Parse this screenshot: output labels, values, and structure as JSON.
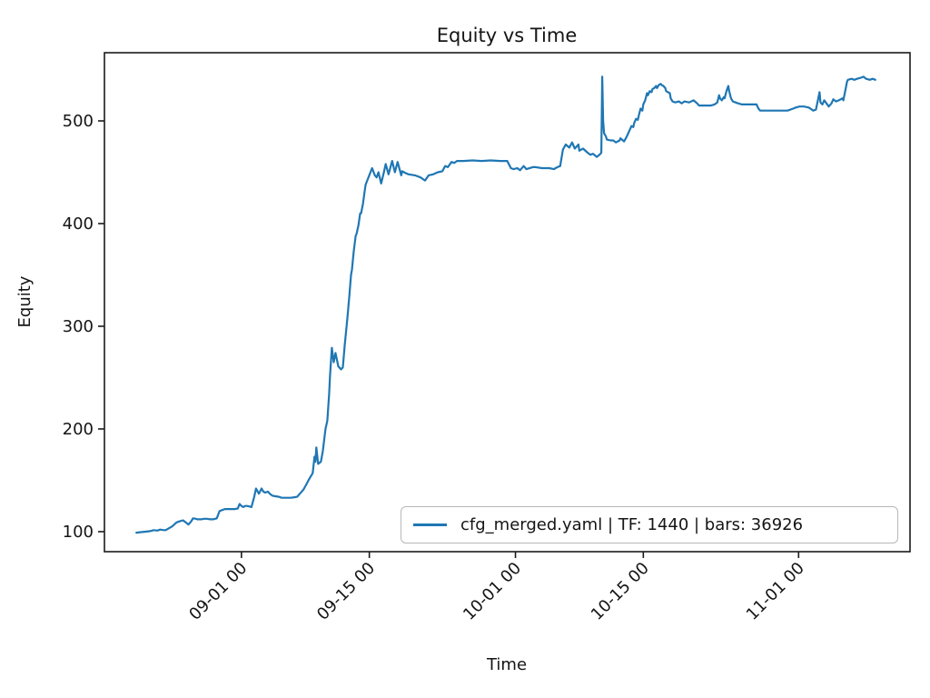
{
  "chart_data": {
    "type": "line",
    "title": "Equity vs Time",
    "xlabel": "Time",
    "ylabel": "Equity",
    "grid": false,
    "legend_position": "lower right",
    "x_unit": "days relative to 09-01 00",
    "xlim": [
      -15.0,
      73.2
    ],
    "ylim": [
      80.5,
      566.4
    ],
    "x_ticks": [
      {
        "t": 0,
        "label": "09-01 00"
      },
      {
        "t": 14,
        "label": "09-15 00"
      },
      {
        "t": 30,
        "label": "10-01 00"
      },
      {
        "t": 44,
        "label": "10-15 00"
      },
      {
        "t": 61,
        "label": "11-01 00"
      }
    ],
    "y_ticks": [
      100,
      200,
      300,
      400,
      500
    ],
    "series": [
      {
        "name": "cfg_merged.yaml | TF: 1440 | bars: 36926",
        "color": "#1f77b4",
        "points": [
          [
            -11.5,
            99
          ],
          [
            -11,
            99.5
          ],
          [
            -10.5,
            100
          ],
          [
            -10,
            100.5
          ],
          [
            -9.6,
            101.5
          ],
          [
            -9.2,
            101
          ],
          [
            -8.9,
            102
          ],
          [
            -8.5,
            101.5
          ],
          [
            -8.3,
            101.5
          ],
          [
            -8,
            103
          ],
          [
            -7.6,
            105
          ],
          [
            -7.1,
            109
          ],
          [
            -6.8,
            110
          ],
          [
            -6.4,
            111
          ],
          [
            -6.1,
            109
          ],
          [
            -5.8,
            107
          ],
          [
            -5.5,
            110
          ],
          [
            -5.3,
            113
          ],
          [
            -5,
            112.5
          ],
          [
            -4.8,
            112
          ],
          [
            -4.4,
            112
          ],
          [
            -4.1,
            112.5
          ],
          [
            -3.8,
            112.5
          ],
          [
            -3.4,
            112
          ],
          [
            -3.1,
            112
          ],
          [
            -2.7,
            113
          ],
          [
            -2.4,
            120
          ],
          [
            -2.1,
            121
          ],
          [
            -1.8,
            122
          ],
          [
            -1.4,
            122
          ],
          [
            -1.1,
            122
          ],
          [
            -0.7,
            122
          ],
          [
            -0.4,
            122.5
          ],
          [
            -0.2,
            127
          ],
          [
            0,
            125
          ],
          [
            0.2,
            124
          ],
          [
            0.4,
            125
          ],
          [
            0.6,
            125
          ],
          [
            0.9,
            124.5
          ],
          [
            1.1,
            124
          ],
          [
            1.4,
            134
          ],
          [
            1.6,
            142
          ],
          [
            1.9,
            137
          ],
          [
            2.2,
            142
          ],
          [
            2.4,
            139
          ],
          [
            2.6,
            138
          ],
          [
            2.9,
            139
          ],
          [
            3.1,
            137
          ],
          [
            3.4,
            135
          ],
          [
            3.7,
            134.5
          ],
          [
            4.1,
            134
          ],
          [
            4.4,
            133
          ],
          [
            4.9,
            133
          ],
          [
            5.4,
            133
          ],
          [
            5.8,
            133.5
          ],
          [
            6.1,
            134
          ],
          [
            6.4,
            137
          ],
          [
            6.8,
            141
          ],
          [
            7.1,
            146
          ],
          [
            7.4,
            151
          ],
          [
            7.8,
            157
          ],
          [
            8,
            173
          ],
          [
            8.1,
            168
          ],
          [
            8.2,
            182
          ],
          [
            8.4,
            166
          ],
          [
            8.7,
            168
          ],
          [
            8.9,
            178
          ],
          [
            9.2,
            200
          ],
          [
            9.4,
            208
          ],
          [
            9.6,
            234
          ],
          [
            9.7,
            252
          ],
          [
            9.9,
            279
          ],
          [
            10.1,
            265
          ],
          [
            10.3,
            274
          ],
          [
            10.6,
            261
          ],
          [
            10.9,
            258
          ],
          [
            11.1,
            260
          ],
          [
            11.3,
            281
          ],
          [
            11.6,
            308
          ],
          [
            11.8,
            328
          ],
          [
            12,
            350
          ],
          [
            12.1,
            355
          ],
          [
            12.3,
            373
          ],
          [
            12.5,
            388
          ],
          [
            12.6,
            390
          ],
          [
            12.8,
            398
          ],
          [
            13,
            410
          ],
          [
            13.1,
            410
          ],
          [
            13.3,
            419
          ],
          [
            13.5,
            432
          ],
          [
            13.6,
            438
          ],
          [
            14,
            447
          ],
          [
            14.3,
            454
          ],
          [
            14.6,
            447
          ],
          [
            14.8,
            445
          ],
          [
            15,
            450
          ],
          [
            15.3,
            439
          ],
          [
            15.6,
            450
          ],
          [
            15.8,
            458
          ],
          [
            16.1,
            448
          ],
          [
            16.5,
            461
          ],
          [
            16.8,
            450
          ],
          [
            17.1,
            460
          ],
          [
            17.5,
            447
          ],
          [
            17.6,
            451
          ],
          [
            18,
            449
          ],
          [
            18.3,
            448
          ],
          [
            19,
            447
          ],
          [
            19.6,
            445
          ],
          [
            20.1,
            442
          ],
          [
            20.5,
            447
          ],
          [
            21,
            448
          ],
          [
            21.5,
            450
          ],
          [
            22,
            451
          ],
          [
            22.3,
            456
          ],
          [
            22.6,
            455
          ],
          [
            23,
            460
          ],
          [
            23.3,
            459
          ],
          [
            23.6,
            461
          ],
          [
            24.3,
            461
          ],
          [
            25.3,
            461.5
          ],
          [
            26.3,
            461
          ],
          [
            27.3,
            461.5
          ],
          [
            28.3,
            461
          ],
          [
            29.1,
            461
          ],
          [
            29.5,
            454
          ],
          [
            29.8,
            453
          ],
          [
            30.2,
            454
          ],
          [
            30.5,
            452
          ],
          [
            30.9,
            456
          ],
          [
            31.2,
            453
          ],
          [
            31.9,
            455
          ],
          [
            32.2,
            455
          ],
          [
            32.9,
            454
          ],
          [
            33.7,
            454
          ],
          [
            34.2,
            453
          ],
          [
            34.6,
            455
          ],
          [
            34.9,
            456
          ],
          [
            35.2,
            472
          ],
          [
            35.5,
            477
          ],
          [
            35.9,
            474
          ],
          [
            36.2,
            479
          ],
          [
            36.5,
            473
          ],
          [
            36.9,
            477
          ],
          [
            37,
            471
          ],
          [
            37.4,
            473
          ],
          [
            37.9,
            469
          ],
          [
            38.2,
            467
          ],
          [
            38.5,
            468
          ],
          [
            38.9,
            465
          ],
          [
            39.2,
            467
          ],
          [
            39.4,
            469
          ],
          [
            39.5,
            543
          ],
          [
            39.6,
            500
          ],
          [
            39.7,
            488
          ],
          [
            39.9,
            485
          ],
          [
            40,
            482
          ],
          [
            40.4,
            481
          ],
          [
            40.7,
            481
          ],
          [
            41,
            479
          ],
          [
            41.4,
            481
          ],
          [
            41.5,
            483
          ],
          [
            41.9,
            480
          ],
          [
            42.2,
            485
          ],
          [
            42.5,
            491
          ],
          [
            42.7,
            495
          ],
          [
            42.9,
            494
          ],
          [
            43,
            498
          ],
          [
            43.2,
            502
          ],
          [
            43.4,
            501
          ],
          [
            43.5,
            505
          ],
          [
            43.7,
            512
          ],
          [
            43.9,
            510
          ],
          [
            44,
            516
          ],
          [
            44.2,
            520
          ],
          [
            44.4,
            527
          ],
          [
            44.5,
            525
          ],
          [
            44.7,
            529
          ],
          [
            44.9,
            528
          ],
          [
            45,
            531
          ],
          [
            45.2,
            532
          ],
          [
            45.4,
            534
          ],
          [
            45.5,
            532
          ],
          [
            45.7,
            535
          ],
          [
            45.9,
            536
          ],
          [
            46,
            535
          ],
          [
            46.2,
            534
          ],
          [
            46.4,
            532
          ],
          [
            46.5,
            529
          ],
          [
            46.9,
            527
          ],
          [
            47,
            522
          ],
          [
            47.2,
            519
          ],
          [
            47.5,
            518
          ],
          [
            47.9,
            519
          ],
          [
            48.2,
            517
          ],
          [
            48.5,
            519
          ],
          [
            49,
            518
          ],
          [
            49.5,
            520
          ],
          [
            49.9,
            517
          ],
          [
            50.1,
            515
          ],
          [
            50.6,
            515
          ],
          [
            51.4,
            515
          ],
          [
            51.8,
            516
          ],
          [
            52.1,
            518
          ],
          [
            52.3,
            525
          ],
          [
            52.4,
            522
          ],
          [
            52.6,
            520
          ],
          [
            52.8,
            523
          ],
          [
            52.9,
            522
          ],
          [
            53.1,
            529
          ],
          [
            53.3,
            534
          ],
          [
            53.4,
            529
          ],
          [
            53.6,
            522
          ],
          [
            53.8,
            519
          ],
          [
            54.1,
            518
          ],
          [
            54.4,
            517
          ],
          [
            54.8,
            516
          ],
          [
            55.6,
            516
          ],
          [
            56.4,
            516
          ],
          [
            56.6,
            512
          ],
          [
            56.8,
            510
          ],
          [
            57.6,
            510
          ],
          [
            58.8,
            510
          ],
          [
            59.1,
            510
          ],
          [
            59.8,
            510
          ],
          [
            60.4,
            512
          ],
          [
            60.7,
            513
          ],
          [
            61.1,
            514
          ],
          [
            61.6,
            514
          ],
          [
            62.1,
            513
          ],
          [
            62.3,
            512
          ],
          [
            62.6,
            510
          ],
          [
            62.9,
            511
          ],
          [
            63.3,
            528
          ],
          [
            63.4,
            518
          ],
          [
            63.6,
            516
          ],
          [
            63.8,
            520
          ],
          [
            63.9,
            519
          ],
          [
            64.3,
            514
          ],
          [
            64.6,
            517
          ],
          [
            64.8,
            521
          ],
          [
            65.1,
            519
          ],
          [
            65.4,
            520
          ],
          [
            65.8,
            522
          ],
          [
            65.9,
            520
          ],
          [
            66.3,
            538
          ],
          [
            66.4,
            540
          ],
          [
            66.8,
            541
          ],
          [
            67.1,
            540
          ],
          [
            67.4,
            541
          ],
          [
            67.8,
            542
          ],
          [
            68.1,
            543
          ],
          [
            68.4,
            541
          ],
          [
            68.8,
            540
          ],
          [
            69.1,
            541
          ],
          [
            69.4,
            540
          ]
        ]
      }
    ]
  }
}
